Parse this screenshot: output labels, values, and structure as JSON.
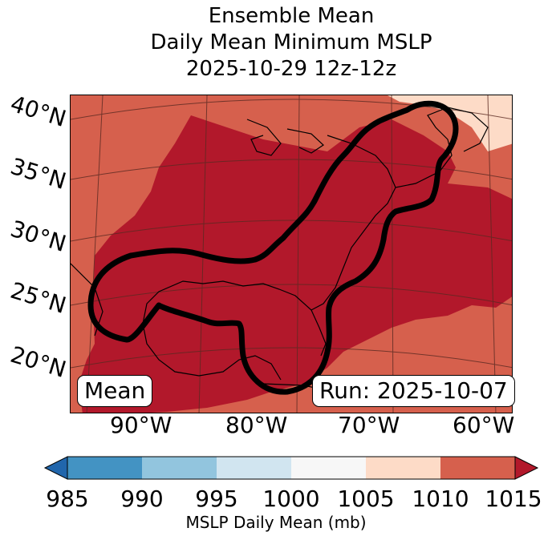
{
  "title": {
    "line1": "Ensemble Mean",
    "line2": "Daily Mean Minimum MSLP",
    "line3": "2025-10-29 12z-12z"
  },
  "map": {
    "lat_labels": [
      "40°N",
      "35°N",
      "30°N",
      "25°N",
      "20°N"
    ],
    "lon_labels": [
      "90°W",
      "80°W",
      "70°W",
      "60°W"
    ],
    "mean_label": "Mean",
    "run_label": "Run: 2025-10-07"
  },
  "colorbar": {
    "ticks": [
      "985",
      "990",
      "995",
      "1000",
      "1005",
      "1010",
      "1015"
    ],
    "label": "MSLP Daily Mean (mb)",
    "colors": [
      "#2166ac",
      "#4393c3",
      "#92c5de",
      "#d1e5f0",
      "#f7f7f7",
      "#fddbc7",
      "#d6604d",
      "#b2182b"
    ]
  },
  "fill_colors": {
    "outer": "#d6604d",
    "inner": "#b2182b",
    "light": "#fddbc7"
  }
}
